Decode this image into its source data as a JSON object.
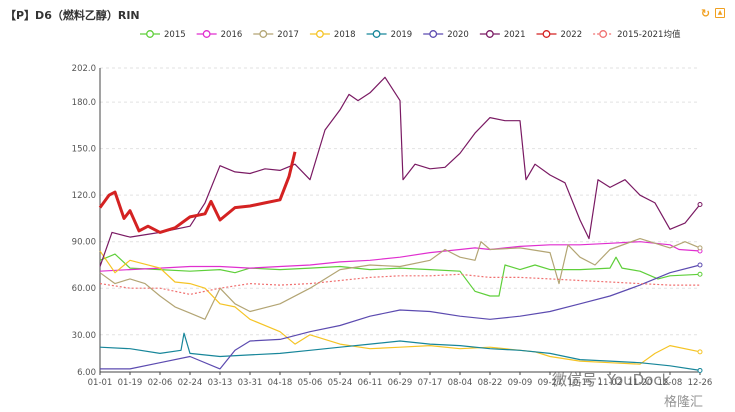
{
  "title": "【P】D6（燃料乙醇）RIN",
  "toolbar": {
    "refresh_icon": "refresh-icon",
    "save_icon": "save-image-icon"
  },
  "watermark": {
    "text": "微信号: YouDock",
    "brand": "格隆汇"
  },
  "chart_data": {
    "type": "line",
    "title": "【P】D6（燃料乙醇）RIN",
    "ylim": [
      6,
      202
    ],
    "y_ticks": [
      "6.00",
      "30.00",
      "60.00",
      "90.00",
      "120.0",
      "150.0",
      "180.0",
      "202.0"
    ],
    "x_ticks": [
      "01-01",
      "01-19",
      "02-06",
      "02-24",
      "03-13",
      "03-31",
      "04-18",
      "05-06",
      "05-24",
      "06-11",
      "06-29",
      "07-17",
      "08-04",
      "08-22",
      "09-09",
      "09-27",
      "10-15",
      "11-02",
      "11-20",
      "12-08",
      "12-26"
    ],
    "legend_position": "top",
    "series": [
      {
        "name": "2015",
        "color": "#5fcf3a",
        "dashed": false,
        "width": 1.2,
        "points": [
          [
            0,
            78
          ],
          [
            0.5,
            82
          ],
          [
            1,
            73
          ],
          [
            2,
            72
          ],
          [
            3,
            71
          ],
          [
            4,
            72
          ],
          [
            4.5,
            70
          ],
          [
            5,
            73
          ],
          [
            6,
            72
          ],
          [
            7,
            73
          ],
          [
            8,
            74
          ],
          [
            9,
            72
          ],
          [
            10,
            73
          ],
          [
            11,
            72
          ],
          [
            12,
            71
          ],
          [
            12.5,
            58
          ],
          [
            13,
            55
          ],
          [
            13.3,
            55
          ],
          [
            13.5,
            75
          ],
          [
            14,
            72
          ],
          [
            14.5,
            75
          ],
          [
            15,
            72
          ],
          [
            16,
            72
          ],
          [
            17,
            73
          ],
          [
            17.2,
            80
          ],
          [
            17.4,
            73
          ],
          [
            18,
            71
          ],
          [
            18.6,
            66
          ],
          [
            19,
            68
          ],
          [
            20,
            69
          ]
        ]
      },
      {
        "name": "2016",
        "color": "#e02fcf",
        "dashed": false,
        "width": 1.2,
        "points": [
          [
            0,
            71
          ],
          [
            1,
            72
          ],
          [
            2,
            73
          ],
          [
            3,
            74
          ],
          [
            4,
            74
          ],
          [
            5,
            73
          ],
          [
            6,
            74
          ],
          [
            7,
            75
          ],
          [
            8,
            77
          ],
          [
            9,
            78
          ],
          [
            10,
            80
          ],
          [
            11,
            83
          ],
          [
            12,
            85
          ],
          [
            12.5,
            86
          ],
          [
            13,
            85
          ],
          [
            14,
            87
          ],
          [
            15,
            88
          ],
          [
            16,
            88
          ],
          [
            17,
            89
          ],
          [
            18,
            90
          ],
          [
            19,
            88
          ],
          [
            19.3,
            85
          ],
          [
            20,
            84
          ]
        ]
      },
      {
        "name": "2017",
        "color": "#b3a574",
        "dashed": false,
        "width": 1.2,
        "points": [
          [
            0,
            70
          ],
          [
            0.5,
            63
          ],
          [
            1,
            66
          ],
          [
            1.5,
            63
          ],
          [
            2,
            55
          ],
          [
            2.5,
            48
          ],
          [
            3,
            44
          ],
          [
            3.5,
            40
          ],
          [
            4,
            60
          ],
          [
            4.5,
            50
          ],
          [
            5,
            45
          ],
          [
            6,
            50
          ],
          [
            7,
            60
          ],
          [
            8,
            72
          ],
          [
            9,
            75
          ],
          [
            10,
            74
          ],
          [
            11,
            78
          ],
          [
            11.5,
            85
          ],
          [
            12,
            80
          ],
          [
            12.5,
            78
          ],
          [
            12.7,
            90
          ],
          [
            13,
            85
          ],
          [
            14,
            86
          ],
          [
            15,
            83
          ],
          [
            15.3,
            63
          ],
          [
            15.6,
            88
          ],
          [
            16,
            80
          ],
          [
            16.5,
            75
          ],
          [
            17,
            85
          ],
          [
            18,
            92
          ],
          [
            19,
            86
          ],
          [
            19.5,
            90
          ],
          [
            20,
            86
          ]
        ]
      },
      {
        "name": "2018",
        "color": "#f5c425",
        "dashed": false,
        "width": 1.2,
        "points": [
          [
            0,
            84
          ],
          [
            0.5,
            70
          ],
          [
            1,
            78
          ],
          [
            2,
            73
          ],
          [
            2.5,
            64
          ],
          [
            3,
            63
          ],
          [
            3.5,
            60
          ],
          [
            4,
            50
          ],
          [
            4.5,
            48
          ],
          [
            5,
            40
          ],
          [
            6,
            32
          ],
          [
            6.5,
            24
          ],
          [
            7,
            30
          ],
          [
            8,
            24
          ],
          [
            9,
            21
          ],
          [
            10,
            22
          ],
          [
            11,
            23
          ],
          [
            12,
            21
          ],
          [
            13,
            22
          ],
          [
            14,
            20
          ],
          [
            14.5,
            19
          ],
          [
            15,
            16
          ],
          [
            16,
            13
          ],
          [
            17,
            12
          ],
          [
            18,
            11
          ],
          [
            18.5,
            18
          ],
          [
            19,
            23
          ],
          [
            20,
            19
          ]
        ]
      },
      {
        "name": "2019",
        "color": "#17869a",
        "dashed": false,
        "width": 1.2,
        "points": [
          [
            0,
            22
          ],
          [
            1,
            21
          ],
          [
            2,
            18
          ],
          [
            2.7,
            20
          ],
          [
            2.8,
            31
          ],
          [
            3,
            18
          ],
          [
            4,
            16
          ],
          [
            5,
            17
          ],
          [
            6,
            18
          ],
          [
            7,
            20
          ],
          [
            8,
            22
          ],
          [
            9,
            24
          ],
          [
            10,
            26
          ],
          [
            11,
            24
          ],
          [
            12,
            23
          ],
          [
            13,
            21
          ],
          [
            14,
            20
          ],
          [
            15,
            18
          ],
          [
            16,
            14
          ],
          [
            17,
            13
          ],
          [
            18,
            12
          ],
          [
            19,
            10
          ],
          [
            20,
            7
          ]
        ]
      },
      {
        "name": "2020",
        "color": "#5c4bb0",
        "dashed": false,
        "width": 1.2,
        "points": [
          [
            0,
            8
          ],
          [
            1,
            8
          ],
          [
            2,
            12
          ],
          [
            3,
            16
          ],
          [
            4,
            8
          ],
          [
            4.5,
            20
          ],
          [
            5,
            26
          ],
          [
            6,
            27
          ],
          [
            7,
            32
          ],
          [
            8,
            36
          ],
          [
            9,
            42
          ],
          [
            10,
            46
          ],
          [
            11,
            45
          ],
          [
            12,
            42
          ],
          [
            13,
            40
          ],
          [
            14,
            42
          ],
          [
            15,
            45
          ],
          [
            16,
            50
          ],
          [
            17,
            55
          ],
          [
            18,
            62
          ],
          [
            19,
            70
          ],
          [
            20,
            75
          ]
        ]
      },
      {
        "name": "2021",
        "color": "#7a1a63",
        "dashed": false,
        "width": 1.2,
        "points": [
          [
            0,
            74
          ],
          [
            0.4,
            96
          ],
          [
            1,
            93
          ],
          [
            2,
            96
          ],
          [
            3,
            100
          ],
          [
            3.5,
            115
          ],
          [
            4,
            139
          ],
          [
            4.5,
            135
          ],
          [
            5,
            134
          ],
          [
            5.5,
            137
          ],
          [
            6,
            136
          ],
          [
            6.5,
            140
          ],
          [
            7,
            130
          ],
          [
            7.5,
            162
          ],
          [
            8,
            175
          ],
          [
            8.3,
            185
          ],
          [
            8.6,
            181
          ],
          [
            9,
            186
          ],
          [
            9.5,
            196
          ],
          [
            10,
            181
          ],
          [
            10.1,
            130
          ],
          [
            10.5,
            140
          ],
          [
            11,
            137
          ],
          [
            11.5,
            138
          ],
          [
            12,
            147
          ],
          [
            12.5,
            160
          ],
          [
            13,
            170
          ],
          [
            13.5,
            168
          ],
          [
            14,
            168
          ],
          [
            14.2,
            130
          ],
          [
            14.5,
            140
          ],
          [
            15,
            133
          ],
          [
            15.5,
            128
          ],
          [
            16,
            104
          ],
          [
            16.3,
            92
          ],
          [
            16.6,
            130
          ],
          [
            17,
            125
          ],
          [
            17.5,
            130
          ],
          [
            18,
            120
          ],
          [
            18.5,
            115
          ],
          [
            19,
            98
          ],
          [
            19.5,
            102
          ],
          [
            20,
            114
          ]
        ]
      },
      {
        "name": "2022",
        "color": "#d42222",
        "dashed": false,
        "width": 3,
        "points": [
          [
            0,
            112
          ],
          [
            0.3,
            120
          ],
          [
            0.5,
            122
          ],
          [
            0.8,
            105
          ],
          [
            1,
            110
          ],
          [
            1.3,
            97
          ],
          [
            1.6,
            100
          ],
          [
            2,
            96
          ],
          [
            2.5,
            99
          ],
          [
            3,
            106
          ],
          [
            3.5,
            108
          ],
          [
            3.7,
            116
          ],
          [
            4,
            104
          ],
          [
            4.5,
            112
          ],
          [
            5,
            113
          ],
          [
            5.5,
            115
          ],
          [
            6,
            117
          ],
          [
            6.3,
            132
          ],
          [
            6.5,
            148
          ]
        ]
      },
      {
        "name": "2015-2021均值",
        "color": "#f07070",
        "dashed": true,
        "width": 1.2,
        "points": [
          [
            0,
            63
          ],
          [
            1,
            60
          ],
          [
            2,
            60
          ],
          [
            3,
            56
          ],
          [
            4,
            60
          ],
          [
            5,
            63
          ],
          [
            6,
            62
          ],
          [
            7,
            63
          ],
          [
            8,
            65
          ],
          [
            9,
            67
          ],
          [
            10,
            68
          ],
          [
            11,
            68
          ],
          [
            12,
            69
          ],
          [
            13,
            67
          ],
          [
            14,
            67
          ],
          [
            15,
            66
          ],
          [
            16,
            65
          ],
          [
            17,
            64
          ],
          [
            18,
            63
          ],
          [
            19,
            62
          ],
          [
            20,
            62
          ]
        ]
      }
    ]
  }
}
